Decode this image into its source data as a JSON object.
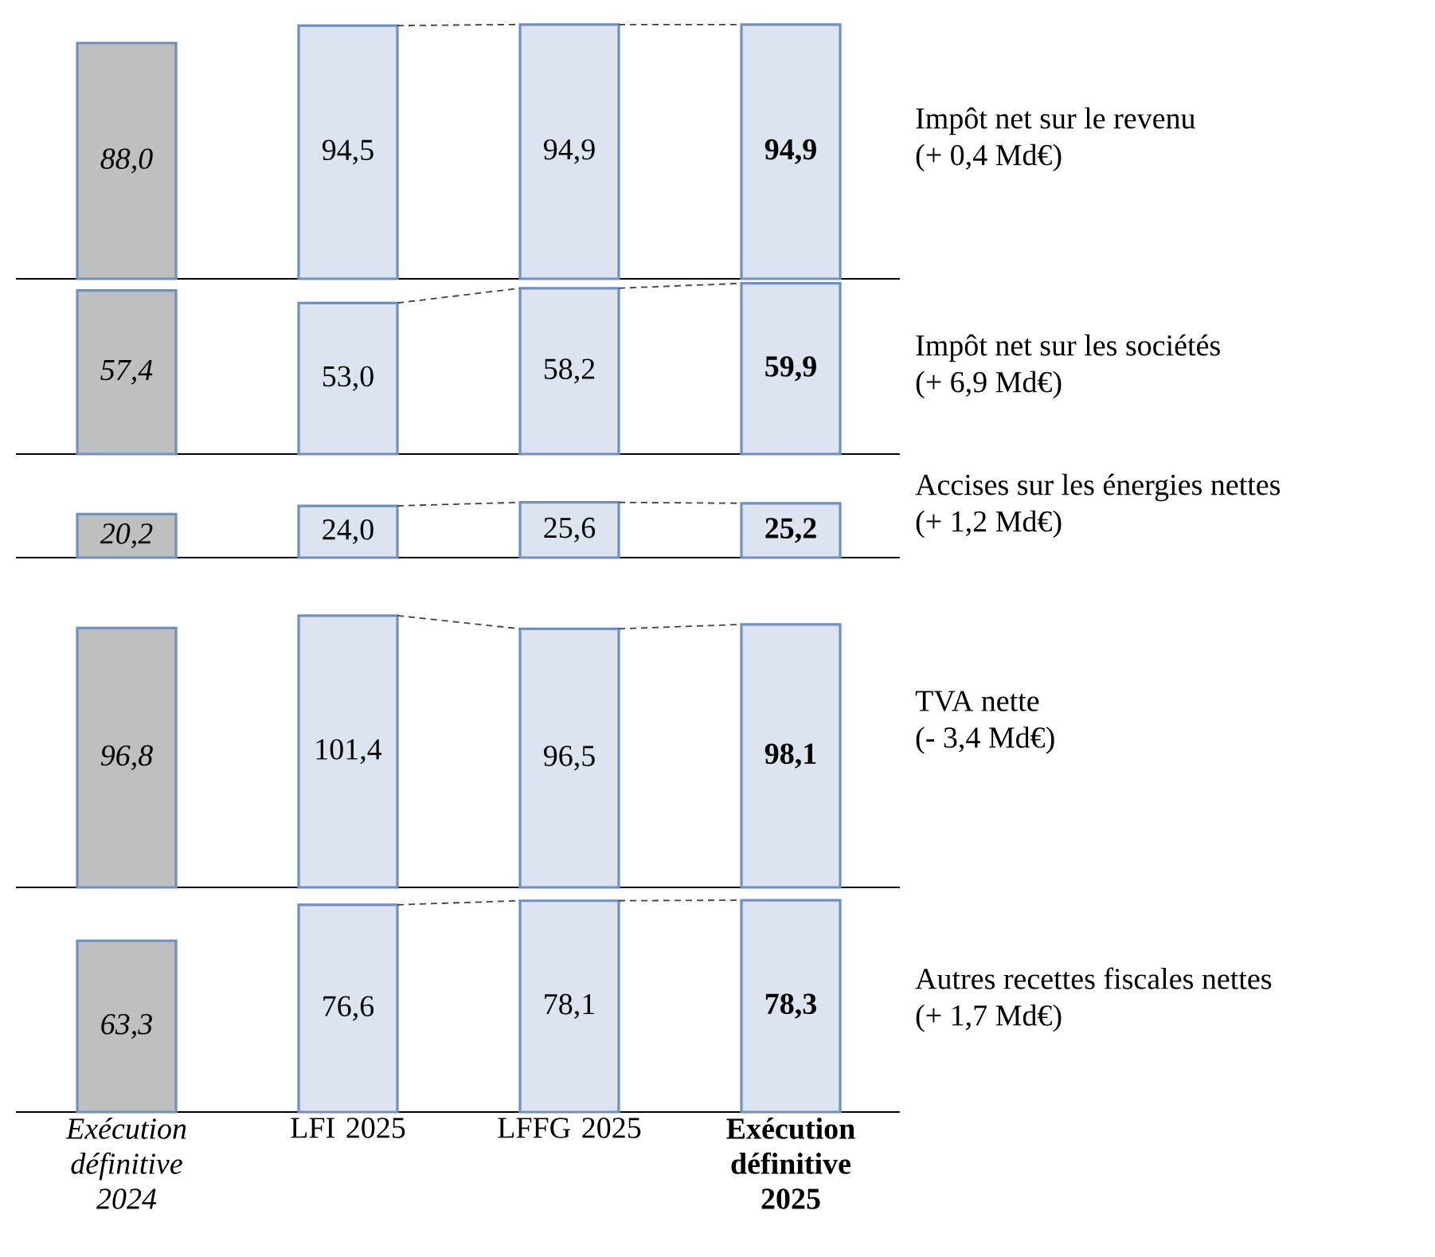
{
  "chart_data": [
    {
      "type": "bar",
      "annotations": [
        "Impôt net sur le revenu",
        "(+ 0,4 Md€)"
      ],
      "categories": [
        null,
        null,
        null,
        null
      ],
      "tick_labels": false,
      "series": [
        {
          "colors": [
            "#bfbfbf",
            "#dce4f0",
            "#dce4f0",
            "#dce4f0"
          ],
          "values": [
            88.0,
            94.5,
            94.9,
            94.9
          ],
          "value_labels": [
            "88,0",
            "94,5",
            "94,9",
            "94,9"
          ]
        }
      ]
    },
    {
      "type": "bar",
      "annotations": [
        "Impôt net sur les sociétés",
        "(+ 6,9 Md€)"
      ],
      "categories": [
        null,
        null,
        null,
        null
      ],
      "tick_labels": false,
      "series": [
        {
          "colors": [
            "#bfbfbf",
            "#dce4f0",
            "#dce4f0",
            "#dce4f0"
          ],
          "values": [
            57.4,
            53.0,
            58.2,
            59.9
          ],
          "value_labels": [
            "57,4",
            "53,0",
            "58,2",
            "59,9"
          ]
        }
      ]
    },
    {
      "type": "bar",
      "annotations": [
        "Accises sur les énergies nettes",
        "(+ 1,2 Md€)"
      ],
      "categories": [
        null,
        null,
        null,
        null
      ],
      "tick_labels": false,
      "series": [
        {
          "colors": [
            "#bfbfbf",
            "#dce4f0",
            "#dce4f0",
            "#dce4f0"
          ],
          "values": [
            20.2,
            24.0,
            25.6,
            25.2
          ],
          "value_labels": [
            "20,2",
            "24,0",
            "25,6",
            "25,2"
          ]
        }
      ]
    },
    {
      "type": "bar",
      "annotations": [
        "TVA nette",
        "(- 3,4 Md€)"
      ],
      "categories": [
        null,
        null,
        null,
        null
      ],
      "tick_labels": false,
      "series": [
        {
          "colors": [
            "#bfbfbf",
            "#dce4f0",
            "#dce4f0",
            "#dce4f0"
          ],
          "values": [
            96.8,
            101.4,
            96.5,
            98.1
          ],
          "value_labels": [
            "96,8",
            "101,4",
            "96,5",
            "98,1"
          ]
        }
      ]
    },
    {
      "type": "bar",
      "annotations": [
        "Autres recettes fiscales nettes",
        "(+ 1,7 Md€)"
      ],
      "categories": [
        "Exécution définitive 2024",
        "LFI 2025",
        "LFFG 2025",
        "Exécution définitive 2025"
      ],
      "tick_labels": "x",
      "series": [
        {
          "colors": [
            "#bfbfbf",
            "#dce4f0",
            "#dce4f0",
            "#dce4f0"
          ],
          "values": [
            63.3,
            76.6,
            78.1,
            78.3
          ],
          "value_labels": [
            "63,3",
            "76,6",
            "78,1",
            "78,3"
          ]
        }
      ]
    }
  ]
}
